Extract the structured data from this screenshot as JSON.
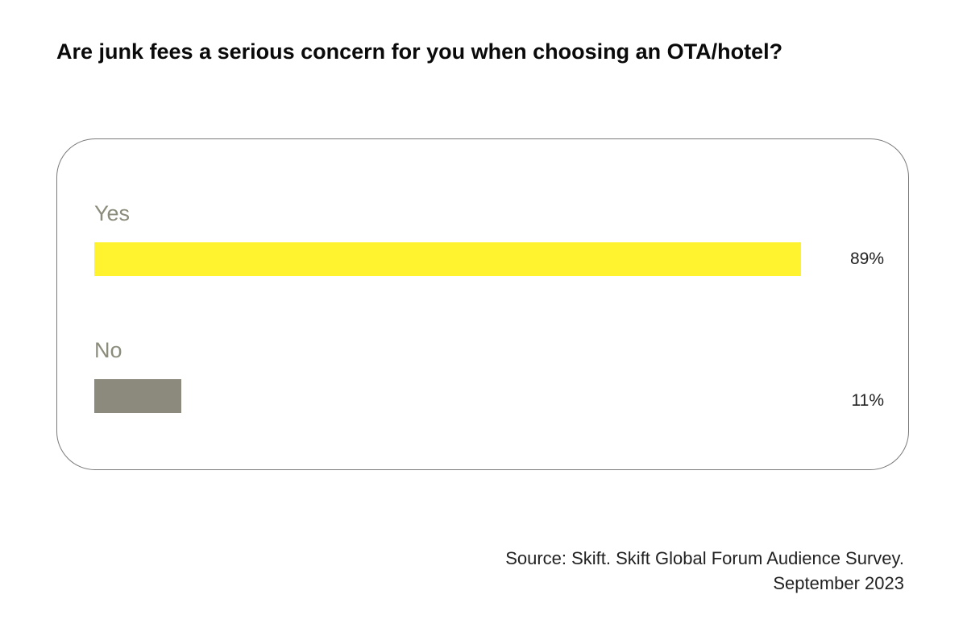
{
  "chart_data": {
    "type": "bar",
    "orientation": "horizontal",
    "title": "Are junk fees a serious concern for you when choosing an OTA/hotel?",
    "categories": [
      "Yes",
      "No"
    ],
    "values": [
      89,
      11
    ],
    "value_labels": [
      "89%",
      "11%"
    ],
    "unit": "%",
    "xlim": [
      0,
      100
    ],
    "colors": [
      "#fff22e",
      "#8b8a7c"
    ],
    "grid": false,
    "legend": "none"
  },
  "source": {
    "line1": "Source: Skift. Skift Global Forum Audience Survey.",
    "line2": "September 2023"
  }
}
